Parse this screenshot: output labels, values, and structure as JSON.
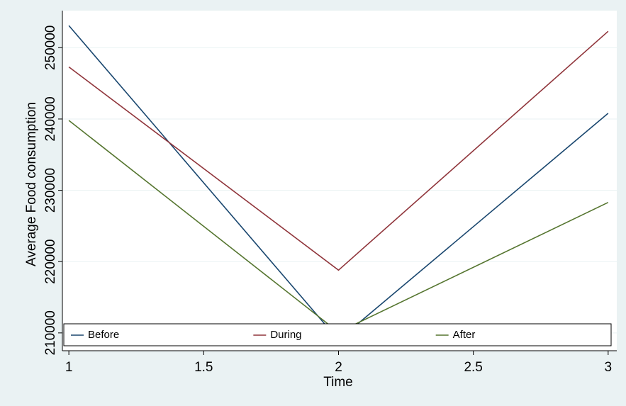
{
  "chart_data": {
    "type": "line",
    "x_label": "Time",
    "y_label": "Average Food consumption",
    "x": [
      1,
      2,
      3
    ],
    "series": [
      {
        "name": "Before",
        "color": "#1a476f",
        "values": [
          253100,
          209000,
          240800
        ]
      },
      {
        "name": "During",
        "color": "#90353b",
        "values": [
          247300,
          218800,
          252300
        ]
      },
      {
        "name": "After",
        "color": "#55752f",
        "values": [
          239800,
          210100,
          228300
        ]
      }
    ],
    "xlim": [
      0.976,
      3.032
    ],
    "xticks": [
      1,
      1.5,
      2,
      2.5,
      3
    ],
    "ylim": [
      207500,
      255200
    ],
    "yticks": [
      210000,
      220000,
      230000,
      240000,
      250000
    ],
    "grid": true,
    "legend": "bottom"
  }
}
